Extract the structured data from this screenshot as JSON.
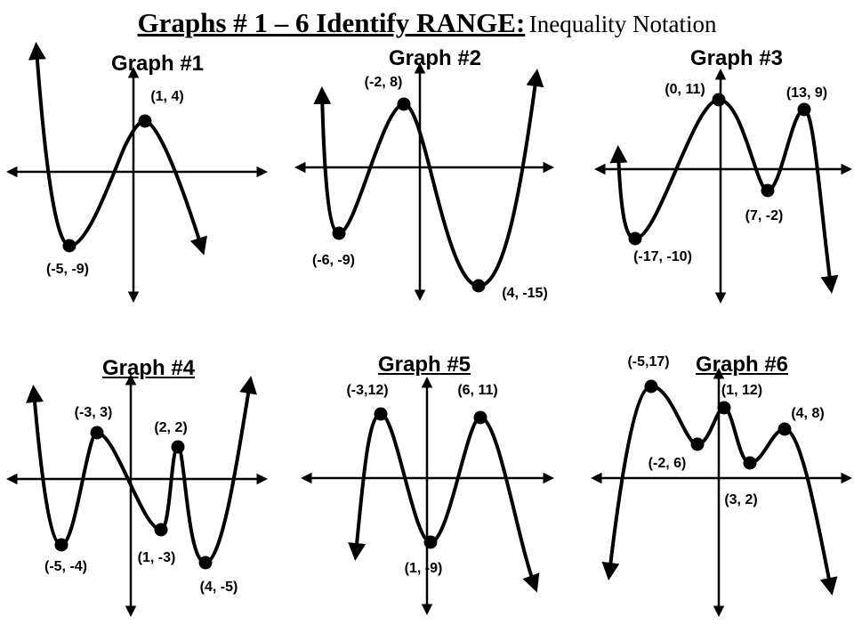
{
  "title": {
    "main": "Graphs # 1 – 6 Identify RANGE:",
    "sub": "Inequality Notation"
  },
  "graphs": [
    {
      "title": "Graph #1",
      "points": [
        "(1, 4)",
        "(-5, -9)"
      ]
    },
    {
      "title": "Graph #2",
      "points": [
        "(-2, 8)",
        "(-6, -9)",
        "(4, -15)"
      ]
    },
    {
      "title": "Graph #3",
      "points": [
        "(0, 11)",
        "(13, 9)",
        "(7, -2)",
        "(-17, -10)"
      ]
    },
    {
      "title": "Graph #4",
      "points": [
        "(-3, 3)",
        "(2, 2)",
        "(-5, -4)",
        "(1, -3)",
        "(4, -5)"
      ]
    },
    {
      "title": "Graph #5",
      "points": [
        "(-3,12)",
        "(6, 11)",
        "(1, -9)"
      ]
    },
    {
      "title": "Graph #6",
      "points": [
        "(-5,17)",
        "(1, 12)",
        "(4, 8)",
        "(-2, 6)",
        "(3, 2)"
      ]
    }
  ],
  "colors": {
    "ink": "#000000",
    "background": "#ffffff"
  }
}
